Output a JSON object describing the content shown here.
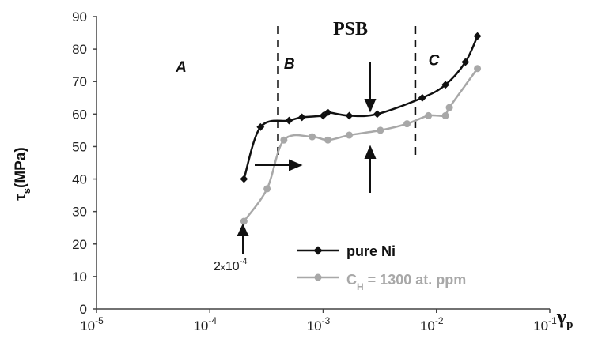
{
  "chart_data": {
    "type": "line",
    "x_scale": "log",
    "xlim": [
      1e-05,
      0.1
    ],
    "ylim": [
      0,
      90
    ],
    "y_ticks": [
      0,
      10,
      20,
      30,
      40,
      50,
      60,
      70,
      80,
      90
    ],
    "x_tick_labels": [
      {
        "value": 1e-05,
        "base": "10",
        "exp": "-5"
      },
      {
        "value": 0.0001,
        "base": "10",
        "exp": "-4"
      },
      {
        "value": 0.001,
        "base": "10",
        "exp": "-3"
      },
      {
        "value": 0.01,
        "base": "10",
        "exp": "-2"
      },
      {
        "value": 0.1,
        "base": "10",
        "exp": "-1"
      }
    ],
    "ylabel": {
      "main": "τ",
      "sub": "s",
      "rest": "(MPa)"
    },
    "xlabel": {
      "main": "γ",
      "sub": "p"
    },
    "grid": false,
    "legend_position": "bottom-right",
    "series": [
      {
        "name": "pure Ni",
        "color": "#111111",
        "marker": "diamond",
        "x": [
          0.0002,
          0.00028,
          0.0005,
          0.00065,
          0.001,
          0.0011,
          0.0017,
          0.003,
          0.0075,
          0.012,
          0.018,
          0.023
        ],
        "y": [
          40,
          56,
          58,
          59,
          59.5,
          60.5,
          59.5,
          60,
          65,
          69,
          76,
          84
        ]
      },
      {
        "name": "C_H = 1300 at. ppm",
        "name_parts": {
          "main": "C",
          "sub": "H",
          "rest": " = 1300 at. ppm"
        },
        "color": "#a8a8a8",
        "marker": "circle",
        "x": [
          0.0002,
          0.00032,
          0.00045,
          0.0008,
          0.0011,
          0.0017,
          0.0032,
          0.0055,
          0.0085,
          0.012,
          0.013,
          0.023
        ],
        "y": [
          27,
          37,
          52,
          53,
          52,
          53.5,
          55,
          57,
          59.5,
          59.5,
          62,
          74
        ]
      }
    ],
    "annotations": {
      "psb": "PSB",
      "regions": [
        {
          "label": "A",
          "x": 5e-05,
          "y": 73
        },
        {
          "label": "B",
          "x": 0.00045,
          "y": 74
        },
        {
          "label": "C",
          "x": 0.0085,
          "y": 75
        }
      ],
      "dividers": [
        0.0004,
        0.0065
      ],
      "threshold": {
        "base": "2",
        "times": "x",
        "pow_base": "10",
        "exp": "-4"
      }
    }
  }
}
